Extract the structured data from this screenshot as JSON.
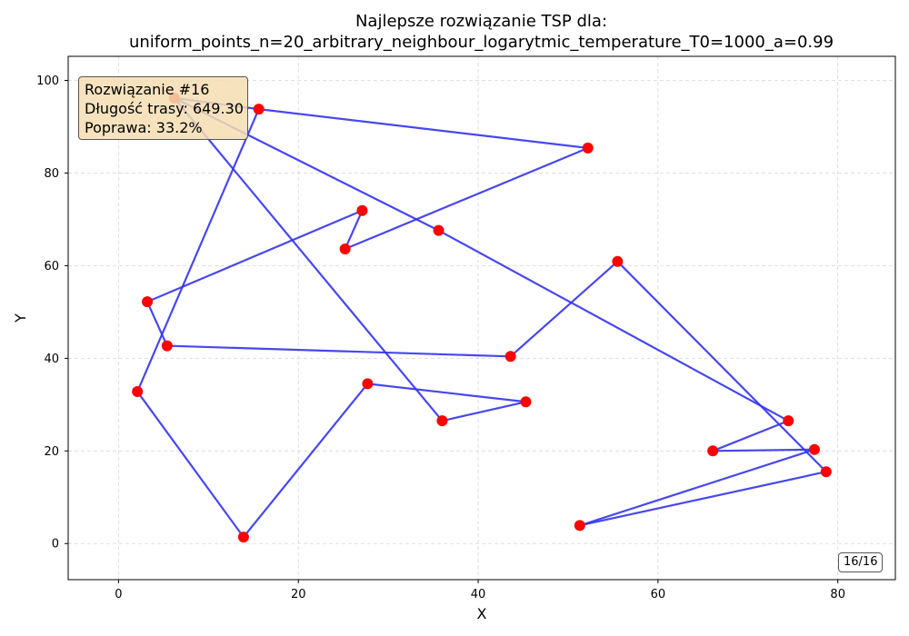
{
  "title_lines": [
    "Najlepsze rozwiązanie TSP dla:",
    "uniform_points_n=20_arbitrary_neighbour_logarytmic_temperature_T0=1000_a=0.99"
  ],
  "info": {
    "line1": "Rozwiązanie #16",
    "line2": "Długość trasy: 649.30",
    "line3": "Poprawa: 33.2%"
  },
  "counter": "16/16",
  "colors": {
    "route": "#3333ee",
    "points": "#ff0000",
    "info_bg": "#f5deb3"
  },
  "chart_data": {
    "type": "line",
    "xlabel": "X",
    "ylabel": "Y",
    "xlim": [
      -5.6,
      86.4
    ],
    "ylim": [
      -7.8,
      105.2
    ],
    "xticks": [
      0,
      20,
      40,
      60,
      80
    ],
    "yticks": [
      0,
      20,
      40,
      60,
      80,
      100
    ],
    "grid": true,
    "route": [
      [
        6.2,
        96.2
      ],
      [
        15.6,
        93.8
      ],
      [
        52.2,
        85.4
      ],
      [
        25.2,
        63.6
      ],
      [
        27.1,
        71.9
      ],
      [
        3.2,
        52.2
      ],
      [
        5.4,
        42.7
      ],
      [
        43.6,
        40.4
      ],
      [
        55.5,
        60.9
      ],
      [
        78.7,
        15.5
      ],
      [
        51.3,
        3.9
      ],
      [
        77.4,
        20.3
      ],
      [
        66.1,
        20.0
      ],
      [
        74.5,
        26.5
      ],
      [
        35.6,
        67.6
      ],
      [
        6.2,
        96.2
      ],
      [
        36.0,
        26.5
      ],
      [
        45.3,
        30.6
      ],
      [
        27.7,
        34.5
      ],
      [
        13.9,
        1.4
      ],
      [
        2.1,
        32.8
      ],
      [
        15.6,
        93.8
      ]
    ],
    "points": [
      [
        6.2,
        96.2
      ],
      [
        15.6,
        93.8
      ],
      [
        52.2,
        85.4
      ],
      [
        27.1,
        71.9
      ],
      [
        25.2,
        63.6
      ],
      [
        35.6,
        67.6
      ],
      [
        55.5,
        60.9
      ],
      [
        3.2,
        52.2
      ],
      [
        5.4,
        42.7
      ],
      [
        43.6,
        40.4
      ],
      [
        27.7,
        34.5
      ],
      [
        45.3,
        30.6
      ],
      [
        36.0,
        26.5
      ],
      [
        2.1,
        32.8
      ],
      [
        74.5,
        26.5
      ],
      [
        66.1,
        20.0
      ],
      [
        77.4,
        20.3
      ],
      [
        78.7,
        15.5
      ],
      [
        51.3,
        3.9
      ],
      [
        13.9,
        1.4
      ]
    ]
  }
}
